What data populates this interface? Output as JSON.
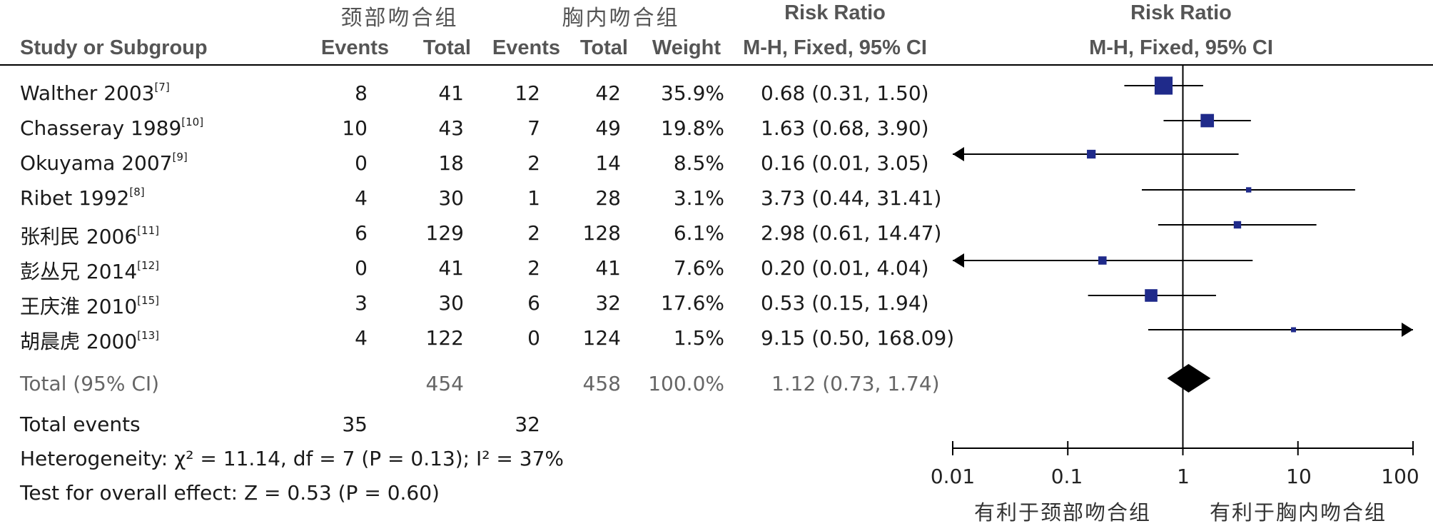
{
  "header": {
    "group_left": "颈部吻合组",
    "group_right": "胸内吻合组",
    "risk_ratio_col": "Risk Ratio",
    "risk_ratio_plot": "Risk Ratio",
    "study": "Study or Subgroup",
    "events_left": "Events",
    "total_left": "Total",
    "events_right": "Events",
    "total_right": "Total",
    "weight": "Weight",
    "method_col": "M-H, Fixed, 95% CI",
    "method_plot": "M-H, Fixed, 95% CI"
  },
  "rows": [
    {
      "study": "Walther 2003",
      "ref": "[7]",
      "e1": "8",
      "t1": "41",
      "e2": "12",
      "t2": "42",
      "weight": "35.9%",
      "ci": "0.68 (0.31, 1.50)"
    },
    {
      "study": "Chasseray 1989",
      "ref": "[10]",
      "e1": "10",
      "t1": "43",
      "e2": "7",
      "t2": "49",
      "weight": "19.8%",
      "ci": "1.63 (0.68, 3.90)"
    },
    {
      "study": "Okuyama 2007",
      "ref": "[9]",
      "e1": "0",
      "t1": "18",
      "e2": "2",
      "t2": "14",
      "weight": "8.5%",
      "ci": "0.16 (0.01, 3.05)"
    },
    {
      "study": "Ribet 1992",
      "ref": "[8]",
      "e1": "4",
      "t1": "30",
      "e2": "1",
      "t2": "28",
      "weight": "3.1%",
      "ci": "3.73 (0.44, 31.41)"
    },
    {
      "study": "张利民 2006",
      "ref": "[11]",
      "e1": "6",
      "t1": "129",
      "e2": "2",
      "t2": "128",
      "weight": "6.1%",
      "ci": "2.98 (0.61, 14.47)"
    },
    {
      "study": "彭丛兄 2014",
      "ref": "[12]",
      "e1": "0",
      "t1": "41",
      "e2": "2",
      "t2": "41",
      "weight": "7.6%",
      "ci": "0.20 (0.01, 4.04)"
    },
    {
      "study": "王庆淮 2010",
      "ref": "[15]",
      "e1": "3",
      "t1": "30",
      "e2": "6",
      "t2": "32",
      "weight": "17.6%",
      "ci": "0.53 (0.15, 1.94)"
    },
    {
      "study": "胡晨虎 2000",
      "ref": "[13]",
      "e1": "4",
      "t1": "122",
      "e2": "0",
      "t2": "124",
      "weight": "1.5%",
      "ci": "9.15 (0.50, 168.09)"
    }
  ],
  "total": {
    "label": "Total (95% CI)",
    "t1": "454",
    "t2": "458",
    "weight": "100.0%",
    "ci": "1.12 (0.73, 1.74)"
  },
  "total_events": {
    "label": "Total events",
    "e1": "35",
    "e2": "32"
  },
  "footer": {
    "heterogeneity": "Heterogeneity: χ² = 11.14, df = 7 (P = 0.13); I² = 37%",
    "overall": "Test for overall effect: Z = 0.53 (P = 0.60)"
  },
  "axis": {
    "ticks": [
      "0.01",
      "0.1",
      "1",
      "10",
      "100"
    ]
  },
  "favours": {
    "left": "有利于颈部吻合组",
    "right": "有利于胸内吻合组"
  },
  "colors": {
    "marker": "#1f2a8a",
    "diamond": "#000000",
    "line": "#000000"
  },
  "chart_data": {
    "type": "forest",
    "title": "",
    "xlabel": "",
    "ylabel": "",
    "x_scale": "log",
    "xlim": [
      0.01,
      100
    ],
    "null_value": 1,
    "studies": [
      {
        "name": "Walther 2003",
        "rr": 0.68,
        "lo": 0.31,
        "hi": 1.5,
        "weight": 35.9
      },
      {
        "name": "Chasseray 1989",
        "rr": 1.63,
        "lo": 0.68,
        "hi": 3.9,
        "weight": 19.8
      },
      {
        "name": "Okuyama 2007",
        "rr": 0.16,
        "lo": 0.01,
        "hi": 3.05,
        "weight": 8.5
      },
      {
        "name": "Ribet 1992",
        "rr": 3.73,
        "lo": 0.44,
        "hi": 31.41,
        "weight": 3.1
      },
      {
        "name": "张利民 2006",
        "rr": 2.98,
        "lo": 0.61,
        "hi": 14.47,
        "weight": 6.1
      },
      {
        "name": "彭丛兄 2014",
        "rr": 0.2,
        "lo": 0.01,
        "hi": 4.04,
        "weight": 7.6
      },
      {
        "name": "王庆淮 2010",
        "rr": 0.53,
        "lo": 0.15,
        "hi": 1.94,
        "weight": 17.6
      },
      {
        "name": "胡晨虎 2000",
        "rr": 9.15,
        "lo": 0.5,
        "hi": 168.09,
        "weight": 1.5
      }
    ],
    "pooled": {
      "rr": 1.12,
      "lo": 0.73,
      "hi": 1.74
    }
  }
}
